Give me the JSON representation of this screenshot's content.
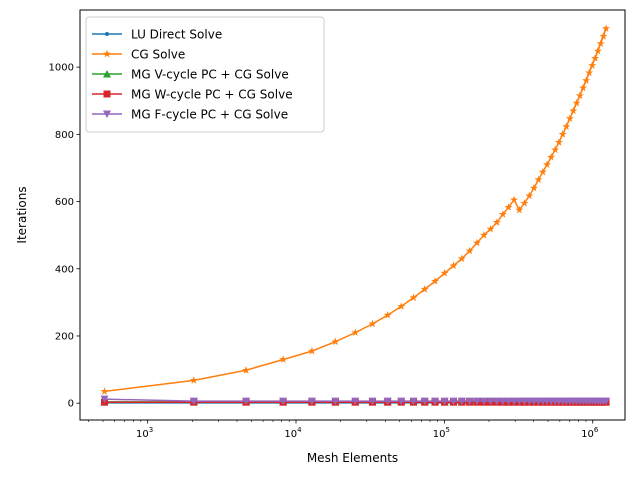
{
  "chart_data": {
    "type": "line",
    "xscale": "log",
    "xlabel": "Mesh Elements",
    "ylabel": "Iterations",
    "xlim": [
      350,
      1650000
    ],
    "ylim": [
      -50,
      1170
    ],
    "x_ticks": [
      {
        "value": 1000,
        "base": "10",
        "exp": "3"
      },
      {
        "value": 10000,
        "base": "10",
        "exp": "4"
      },
      {
        "value": 100000,
        "base": "10",
        "exp": "5"
      },
      {
        "value": 1000000,
        "base": "10",
        "exp": "6"
      }
    ],
    "y_ticks": [
      0,
      200,
      400,
      600,
      800,
      1000
    ],
    "grid": false,
    "legend_position": "top-left",
    "x": [
      512,
      2048,
      4608,
      8192,
      12800,
      18432,
      25088,
      32768,
      41472,
      51200,
      61952,
      73728,
      86528,
      100352,
      115200,
      131072,
      147968,
      165888,
      184832,
      204800,
      225792,
      247808,
      270848,
      294912,
      320000,
      346112,
      373248,
      401408,
      430592,
      460800,
      492032,
      524288,
      557568,
      591872,
      627200,
      663552,
      700928,
      739328,
      778752,
      819200,
      860672,
      903168,
      946688,
      991232,
      1036800,
      1083392,
      1131008,
      1179648,
      1229312
    ],
    "series": [
      {
        "name": "LU Direct Solve",
        "color": "#1f77b4",
        "marker": "dot",
        "values": [
          1,
          1,
          1,
          1,
          1,
          1,
          1,
          1,
          1,
          1,
          1,
          1,
          1,
          1,
          1,
          1,
          1,
          1,
          1,
          1,
          1,
          1,
          1,
          1,
          1,
          1,
          1,
          1,
          1,
          1,
          1,
          1,
          1,
          1,
          1,
          1,
          1,
          1,
          1,
          1,
          1,
          1,
          1,
          1,
          1,
          1,
          1,
          1,
          1
        ]
      },
      {
        "name": "CG Solve",
        "color": "#ff7f0e",
        "marker": "star",
        "values": [
          35,
          68,
          98,
          130,
          155,
          183,
          210,
          236,
          262,
          288,
          314,
          339,
          363,
          387,
          409,
          430,
          453,
          477,
          500,
          518,
          538,
          562,
          583,
          605,
          575,
          595,
          617,
          640,
          665,
          688,
          710,
          732,
          754,
          776,
          800,
          823,
          847,
          870,
          893,
          915,
          938,
          960,
          983,
          1005,
          1026,
          1048,
          1070,
          1092,
          1115
        ]
      },
      {
        "name": "MG V-cycle PC + CG Solve",
        "color": "#2ca02c",
        "marker": "triangle-up",
        "values": [
          4,
          4,
          4,
          4,
          4,
          4,
          4,
          4,
          4,
          4,
          4,
          4,
          4,
          4,
          4,
          4,
          4,
          4,
          4,
          4,
          4,
          4,
          4,
          4,
          4,
          4,
          4,
          4,
          4,
          4,
          4,
          4,
          4,
          4,
          4,
          4,
          4,
          4,
          4,
          4,
          4,
          4,
          4,
          4,
          4,
          4,
          4,
          4,
          4
        ]
      },
      {
        "name": "MG W-cycle PC + CG Solve",
        "color": "#d62728",
        "marker": "square",
        "values": [
          3,
          3,
          3,
          3,
          3,
          3,
          3,
          3,
          3,
          3,
          3,
          3,
          3,
          3,
          3,
          3,
          3,
          3,
          3,
          3,
          3,
          3,
          3,
          3,
          3,
          3,
          3,
          3,
          3,
          3,
          3,
          3,
          3,
          3,
          3,
          3,
          3,
          3,
          3,
          3,
          3,
          3,
          3,
          3,
          3,
          3,
          3,
          3,
          3
        ]
      },
      {
        "name": "MG F-cycle PC + CG Solve",
        "color": "#9467bd",
        "marker": "triangle-down",
        "values": [
          12,
          6,
          6,
          6,
          6,
          6,
          6,
          6,
          6,
          6,
          6,
          6,
          6,
          6,
          6,
          6,
          6,
          6,
          6,
          6,
          6,
          6,
          6,
          6,
          6,
          6,
          6,
          6,
          6,
          6,
          6,
          6,
          6,
          6,
          6,
          6,
          6,
          6,
          6,
          6,
          6,
          6,
          6,
          6,
          6,
          6,
          6,
          6,
          6
        ]
      }
    ]
  }
}
